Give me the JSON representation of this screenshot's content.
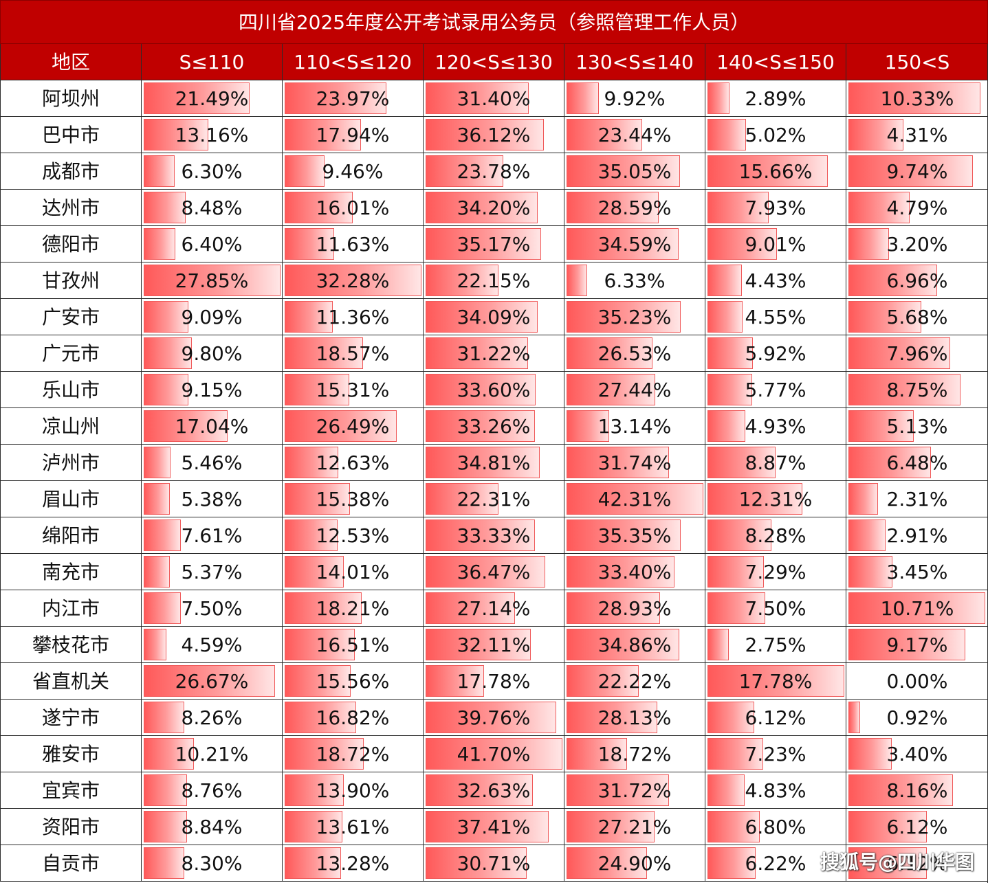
{
  "title": "四川省2025年度公开考试录用公务员（参照管理工作人员）",
  "watermark": "搜狐号@四川华图",
  "colors": {
    "header_bg": "#c00000",
    "bar_fill": "#ff5959",
    "bar_border": "#f05a5a"
  },
  "chart_data": {
    "type": "table",
    "title": "四川省2025年度公开考试录用公务员（参照管理工作人员）",
    "columns": [
      "地区",
      "S≤110",
      "110<S≤120",
      "120<S≤130",
      "130<S≤140",
      "140<S≤150",
      "150<S"
    ],
    "rows": [
      {
        "region": "阿坝州",
        "values": [
          "21.49%",
          "23.97%",
          "31.40%",
          "9.92%",
          "2.89%",
          "10.33%"
        ]
      },
      {
        "region": "巴中市",
        "values": [
          "13.16%",
          "17.94%",
          "36.12%",
          "23.44%",
          "5.02%",
          "4.31%"
        ]
      },
      {
        "region": "成都市",
        "values": [
          "6.30%",
          "9.46%",
          "23.78%",
          "35.05%",
          "15.66%",
          "9.74%"
        ]
      },
      {
        "region": "达州市",
        "values": [
          "8.48%",
          "16.01%",
          "34.20%",
          "28.59%",
          "7.93%",
          "4.79%"
        ]
      },
      {
        "region": "德阳市",
        "values": [
          "6.40%",
          "11.63%",
          "35.17%",
          "34.59%",
          "9.01%",
          "3.20%"
        ]
      },
      {
        "region": "甘孜州",
        "values": [
          "27.85%",
          "32.28%",
          "22.15%",
          "6.33%",
          "4.43%",
          "6.96%"
        ]
      },
      {
        "region": "广安市",
        "values": [
          "9.09%",
          "11.36%",
          "34.09%",
          "35.23%",
          "4.55%",
          "5.68%"
        ]
      },
      {
        "region": "广元市",
        "values": [
          "9.80%",
          "18.57%",
          "31.22%",
          "26.53%",
          "5.92%",
          "7.96%"
        ]
      },
      {
        "region": "乐山市",
        "values": [
          "9.15%",
          "15.31%",
          "33.60%",
          "27.44%",
          "5.77%",
          "8.75%"
        ]
      },
      {
        "region": "凉山州",
        "values": [
          "17.04%",
          "26.49%",
          "33.26%",
          "13.14%",
          "4.93%",
          "5.13%"
        ]
      },
      {
        "region": "泸州市",
        "values": [
          "5.46%",
          "12.63%",
          "34.81%",
          "31.74%",
          "8.87%",
          "6.48%"
        ]
      },
      {
        "region": "眉山市",
        "values": [
          "5.38%",
          "15.38%",
          "22.31%",
          "42.31%",
          "12.31%",
          "2.31%"
        ]
      },
      {
        "region": "绵阳市",
        "values": [
          "7.61%",
          "12.53%",
          "33.33%",
          "35.35%",
          "8.28%",
          "2.91%"
        ]
      },
      {
        "region": "南充市",
        "values": [
          "5.37%",
          "14.01%",
          "36.47%",
          "33.40%",
          "7.29%",
          "3.45%"
        ]
      },
      {
        "region": "内江市",
        "values": [
          "7.50%",
          "18.21%",
          "27.14%",
          "28.93%",
          "7.50%",
          "10.71%"
        ]
      },
      {
        "region": "攀枝花市",
        "values": [
          "4.59%",
          "16.51%",
          "32.11%",
          "34.86%",
          "2.75%",
          "9.17%"
        ]
      },
      {
        "region": "省直机关",
        "values": [
          "26.67%",
          "15.56%",
          "17.78%",
          "22.22%",
          "17.78%",
          "0.00%"
        ]
      },
      {
        "region": "遂宁市",
        "values": [
          "8.26%",
          "16.82%",
          "39.76%",
          "28.13%",
          "6.12%",
          "0.92%"
        ]
      },
      {
        "region": "雅安市",
        "values": [
          "10.21%",
          "18.72%",
          "41.70%",
          "18.72%",
          "7.23%",
          "3.40%"
        ]
      },
      {
        "region": "宜宾市",
        "values": [
          "8.76%",
          "13.90%",
          "32.63%",
          "31.72%",
          "4.83%",
          "8.16%"
        ]
      },
      {
        "region": "资阳市",
        "values": [
          "8.84%",
          "13.61%",
          "37.41%",
          "27.21%",
          "6.80%",
          "6.12%"
        ]
      },
      {
        "region": "自贡市",
        "values": [
          "8.30%",
          "13.28%",
          "30.71%",
          "24.90%",
          "6.22%",
          "6.12%"
        ]
      }
    ]
  }
}
